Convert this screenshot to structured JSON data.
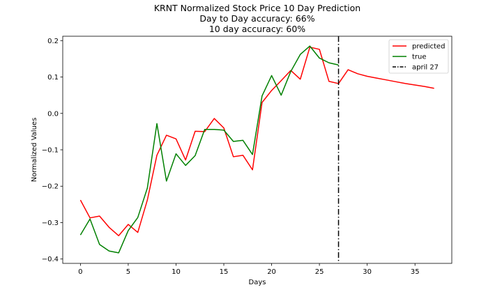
{
  "chart_data": {
    "type": "line",
    "title_lines": [
      "KRNT Normalized Stock Price 10 Day Prediction",
      "Day to Day accuracy: 66%",
      "10 day accuracy: 60%"
    ],
    "xlabel": "Days",
    "ylabel": "Normalized Values",
    "xlim": [
      -1.85,
      38.85
    ],
    "ylim": [
      -0.412,
      0.212
    ],
    "xticks": [
      0,
      5,
      10,
      15,
      20,
      25,
      30,
      35
    ],
    "yticks": [
      -0.4,
      -0.3,
      -0.2,
      -0.1,
      0.0,
      0.1,
      0.2
    ],
    "ytick_labels": [
      "−0.4",
      "−0.3",
      "−0.2",
      "−0.1",
      "0.0",
      "0.1",
      "0.2"
    ],
    "legend_position": "upper right",
    "series": [
      {
        "name": "predicted",
        "color": "#ff0000",
        "x": [
          0,
          1,
          2,
          3,
          4,
          5,
          6,
          7,
          8,
          9,
          10,
          11,
          12,
          13,
          14,
          15,
          16,
          17,
          18,
          19,
          20,
          21,
          22,
          23,
          24,
          25,
          26,
          27,
          28,
          29,
          30,
          31,
          32,
          33,
          34,
          35,
          36,
          37
        ],
        "y": [
          -0.238,
          -0.287,
          -0.282,
          -0.313,
          -0.336,
          -0.305,
          -0.327,
          -0.238,
          -0.115,
          -0.06,
          -0.07,
          -0.128,
          -0.049,
          -0.05,
          -0.014,
          -0.04,
          -0.119,
          -0.115,
          -0.155,
          0.03,
          0.063,
          0.09,
          0.118,
          0.094,
          0.182,
          0.176,
          0.088,
          0.082,
          0.12,
          0.109,
          0.102,
          0.097,
          0.092,
          0.087,
          0.082,
          0.078,
          0.074,
          0.069
        ]
      },
      {
        "name": "true",
        "color": "#008000",
        "x": [
          0,
          1,
          2,
          3,
          4,
          5,
          6,
          7,
          8,
          9,
          10,
          11,
          12,
          13,
          14,
          15,
          16,
          17,
          18,
          19,
          20,
          21,
          22,
          23,
          24,
          25,
          26,
          27
        ],
        "y": [
          -0.334,
          -0.29,
          -0.36,
          -0.378,
          -0.383,
          -0.322,
          -0.286,
          -0.205,
          -0.028,
          -0.186,
          -0.111,
          -0.143,
          -0.116,
          -0.044,
          -0.044,
          -0.046,
          -0.077,
          -0.074,
          -0.113,
          0.048,
          0.104,
          0.05,
          0.115,
          0.162,
          0.185,
          0.152,
          0.139,
          0.133
        ]
      }
    ],
    "vline": {
      "name": "april 27",
      "x": 27,
      "color": "#000000"
    }
  }
}
